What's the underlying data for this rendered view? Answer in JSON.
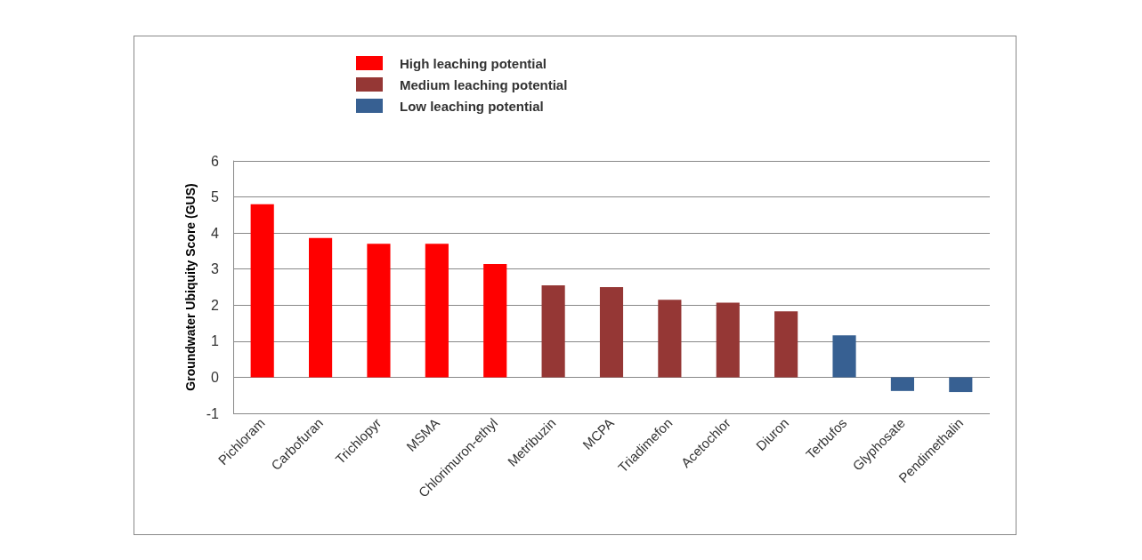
{
  "chart_data": {
    "type": "bar",
    "ylabel": "Groundwater Ubiquity Score (GUS)",
    "categories": [
      "Pichloram",
      "Carbofuran",
      "Trichlopyr",
      "MSMA",
      "Chlorimuron-ethyl",
      "Metribuzin",
      "MCPA",
      "Triadimefon",
      "Acetochlor",
      "Diuron",
      "Terbufos",
      "Glyphosate",
      "Pendimethalin"
    ],
    "series": [
      {
        "name": "High leaching potential",
        "color": "#ff0000",
        "values": [
          4.8,
          3.86,
          3.7,
          3.7,
          3.14,
          null,
          null,
          null,
          null,
          null,
          null,
          null,
          null
        ]
      },
      {
        "name": "Medium leaching potential",
        "color": "#953735",
        "values": [
          null,
          null,
          null,
          null,
          null,
          2.55,
          2.5,
          2.15,
          2.07,
          1.83,
          null,
          null,
          null
        ]
      },
      {
        "name": "Low leaching potential",
        "color": "#376092",
        "values": [
          null,
          null,
          null,
          null,
          null,
          null,
          null,
          null,
          null,
          null,
          1.16,
          -0.38,
          -0.41
        ]
      }
    ],
    "stacked": true,
    "ylim": [
      -1,
      6
    ],
    "yticks": [
      -1,
      0,
      1,
      2,
      3,
      4,
      5,
      6
    ],
    "grid": "y",
    "legend": "top left"
  }
}
